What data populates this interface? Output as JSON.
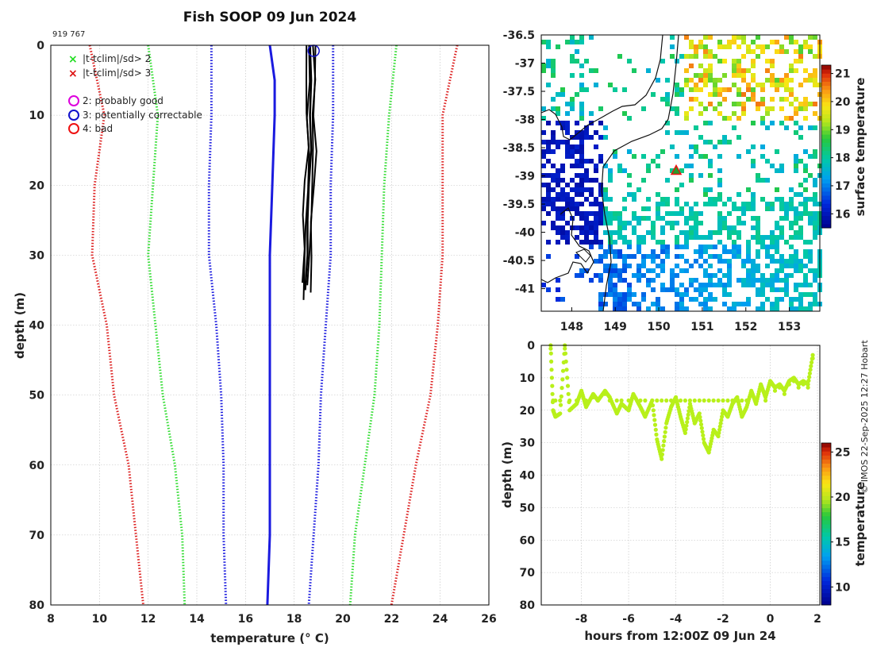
{
  "chart_data": [
    {
      "type": "line",
      "title": "Fish SOOP 09 Jun 2024",
      "subtitle": "919 767",
      "xlabel": "temperature (° C)",
      "ylabel": "depth (m)",
      "xlim": [
        8,
        26
      ],
      "ylim": [
        80,
        0
      ],
      "x_ticks": [
        "8",
        "10",
        "12",
        "14",
        "16",
        "18",
        "20",
        "22",
        "24",
        "26"
      ],
      "y_ticks": [
        "0",
        "10",
        "20",
        "30",
        "40",
        "50",
        "60",
        "70",
        "80"
      ],
      "legend": [
        {
          "marker": "x",
          "color": "#22dd22",
          "label": "|t-tclim|/sd> 2"
        },
        {
          "marker": "x",
          "color": "#dd1111",
          "label": "|t-tclim|/sd> 3"
        },
        {
          "marker": "o",
          "color": "#dd00dd",
          "label": "2: probably good"
        },
        {
          "marker": "o",
          "color": "#1111cc",
          "label": "3: potentially correctable"
        },
        {
          "marker": "o",
          "color": "#ee1111",
          "label": "4: bad"
        }
      ],
      "series": [
        {
          "name": "clim mean",
          "color": "#1a1adf",
          "style": "solid",
          "points": [
            [
              17.0,
              0
            ],
            [
              17.2,
              5
            ],
            [
              17.2,
              10
            ],
            [
              17.1,
              20
            ],
            [
              17.0,
              30
            ],
            [
              17.0,
              40
            ],
            [
              17.0,
              50
            ],
            [
              17.0,
              60
            ],
            [
              17.0,
              70
            ],
            [
              16.9,
              80
            ]
          ]
        },
        {
          "name": "clim -1sd",
          "color": "#1a1adf",
          "style": "dotted",
          "points": [
            [
              14.6,
              0
            ],
            [
              14.6,
              10
            ],
            [
              14.5,
              20
            ],
            [
              14.5,
              30
            ],
            [
              14.8,
              40
            ],
            [
              15.0,
              50
            ],
            [
              15.1,
              60
            ],
            [
              15.1,
              70
            ],
            [
              15.2,
              80
            ]
          ]
        },
        {
          "name": "clim +1sd",
          "color": "#1a1adf",
          "style": "dotted",
          "points": [
            [
              19.6,
              0
            ],
            [
              19.6,
              10
            ],
            [
              19.5,
              20
            ],
            [
              19.5,
              30
            ],
            [
              19.3,
              40
            ],
            [
              19.1,
              50
            ],
            [
              19.0,
              60
            ],
            [
              18.8,
              70
            ],
            [
              18.6,
              80
            ]
          ]
        },
        {
          "name": "clim -2sd",
          "color": "#33dd33",
          "style": "dotted",
          "points": [
            [
              12.0,
              0
            ],
            [
              12.4,
              10
            ],
            [
              12.2,
              20
            ],
            [
              12.0,
              30
            ],
            [
              12.3,
              40
            ],
            [
              12.6,
              50
            ],
            [
              13.1,
              60
            ],
            [
              13.4,
              70
            ],
            [
              13.5,
              80
            ]
          ]
        },
        {
          "name": "clim +2sd",
          "color": "#33dd33",
          "style": "dotted",
          "points": [
            [
              22.2,
              0
            ],
            [
              21.9,
              10
            ],
            [
              21.7,
              20
            ],
            [
              21.6,
              30
            ],
            [
              21.5,
              40
            ],
            [
              21.3,
              50
            ],
            [
              20.9,
              60
            ],
            [
              20.5,
              70
            ],
            [
              20.3,
              80
            ]
          ]
        },
        {
          "name": "clim -3sd",
          "color": "#dd2222",
          "style": "dotted",
          "points": [
            [
              9.6,
              0
            ],
            [
              10.2,
              10
            ],
            [
              9.8,
              20
            ],
            [
              9.7,
              30
            ],
            [
              10.3,
              40
            ],
            [
              10.6,
              50
            ],
            [
              11.2,
              60
            ],
            [
              11.5,
              70
            ],
            [
              11.8,
              80
            ]
          ]
        },
        {
          "name": "clim +3sd",
          "color": "#dd2222",
          "style": "dotted",
          "points": [
            [
              24.7,
              0
            ],
            [
              24.1,
              10
            ],
            [
              24.1,
              20
            ],
            [
              24.1,
              30
            ],
            [
              23.9,
              40
            ],
            [
              23.6,
              50
            ],
            [
              23.0,
              60
            ],
            [
              22.5,
              70
            ],
            [
              22.0,
              80
            ]
          ]
        },
        {
          "name": "profiles",
          "color": "#000000",
          "style": "solid",
          "points": [
            [
              18.65,
              0
            ],
            [
              18.7,
              5
            ],
            [
              18.65,
              10
            ],
            [
              18.7,
              15
            ],
            [
              18.6,
              20
            ],
            [
              18.55,
              25
            ],
            [
              18.55,
              30
            ],
            [
              18.45,
              35
            ]
          ]
        }
      ],
      "flag_circle": {
        "x": 18.8,
        "y": 0.8
      }
    },
    {
      "type": "heatmap",
      "title": "",
      "xlabel": "",
      "ylabel": "",
      "xlim": [
        147.3,
        153.7
      ],
      "ylim": [
        -41.4,
        -36.5
      ],
      "x_ticks": [
        "148",
        "149",
        "150",
        "151",
        "152",
        "153"
      ],
      "y_ticks": [
        "-36.5",
        "-37",
        "-37.5",
        "-38",
        "-38.5",
        "-39",
        "-39.5",
        "-40",
        "-40.5",
        "-41"
      ],
      "colorbar_label": "surface temperature",
      "colorbar_ticks": [
        "16",
        "17",
        "18",
        "19",
        "20",
        "21"
      ],
      "colorbar_range": [
        15.5,
        21.3
      ],
      "marker": {
        "lon": 150.4,
        "lat": -38.9,
        "color": "#ee1111"
      }
    },
    {
      "type": "scatter",
      "title": "",
      "xlabel": "hours from 12:00Z 09 Jun 24",
      "ylabel": "depth (m)",
      "xlim": [
        -9.7,
        2.1
      ],
      "ylim": [
        80,
        0
      ],
      "x_ticks": [
        "-8",
        "-6",
        "-4",
        "-2",
        "0",
        "2"
      ],
      "y_ticks": [
        "0",
        "10",
        "20",
        "30",
        "40",
        "50",
        "60",
        "70",
        "80"
      ],
      "colorbar_label": "temperature",
      "colorbar_ticks": [
        "10",
        "15",
        "20",
        "25"
      ],
      "colorbar_range": [
        8,
        26
      ],
      "point_color": "#b8f01a",
      "x": [
        -9.3,
        -9.2,
        -9.1,
        -8.9,
        -8.7,
        -8.5,
        -8.2,
        -8.0,
        -7.8,
        -7.5,
        -7.3,
        -7.0,
        -6.8,
        -6.5,
        -6.3,
        -6.0,
        -5.8,
        -5.5,
        -5.3,
        -5.0,
        -4.8,
        -4.6,
        -4.4,
        -4.2,
        -4.0,
        -3.8,
        -3.6,
        -3.4,
        -3.2,
        -3.0,
        -2.8,
        -2.6,
        -2.4,
        -2.2,
        -2.0,
        -1.8,
        -1.6,
        -1.4,
        -1.2,
        -1.0,
        -0.8,
        -0.6,
        -0.4,
        -0.2,
        0.0,
        0.2,
        0.4,
        0.6,
        0.8,
        1.0,
        1.2,
        1.4,
        1.6,
        1.8
      ],
      "y": [
        0,
        20,
        22,
        21,
        0,
        20,
        18,
        14,
        19,
        15,
        17,
        14,
        16,
        21,
        18,
        20,
        15,
        19,
        22,
        17,
        29,
        35,
        24,
        19,
        16,
        22,
        27,
        18,
        24,
        21,
        30,
        33,
        26,
        28,
        20,
        22,
        18,
        16,
        22,
        19,
        14,
        18,
        12,
        16,
        11,
        13,
        12,
        14,
        11,
        10,
        12,
        11,
        12,
        3
      ]
    }
  ],
  "watermark": "© IMOS 22-Sep-2025 12:27 Hobart"
}
